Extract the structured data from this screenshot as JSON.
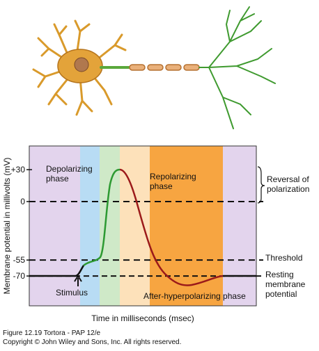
{
  "y_axis": {
    "label": "Membrane potential in millivolts (mV)",
    "ticks": [
      {
        "value": 30,
        "label": "+30"
      },
      0,
      -55,
      -70
    ]
  },
  "x_axis": {
    "label": "Time in milliseconds (msec)"
  },
  "annotations": {
    "depolarizing": [
      "Depolarizing",
      "phase"
    ],
    "repolarizing": [
      "Repolarizing",
      "phase"
    ],
    "reversal": [
      "Reversal of",
      "polarization"
    ],
    "threshold": "Threshold",
    "resting": [
      "Resting",
      "membrane",
      "potential"
    ],
    "stimulus": "Stimulus",
    "after_hyperpolarizing": "After-hyperpolarizing phase"
  },
  "caption": [
    "Figure 12.19  Tortora - PAP 12/e",
    "Copyright © John Wiley and Sons, Inc. All rights reserved."
  ]
}
